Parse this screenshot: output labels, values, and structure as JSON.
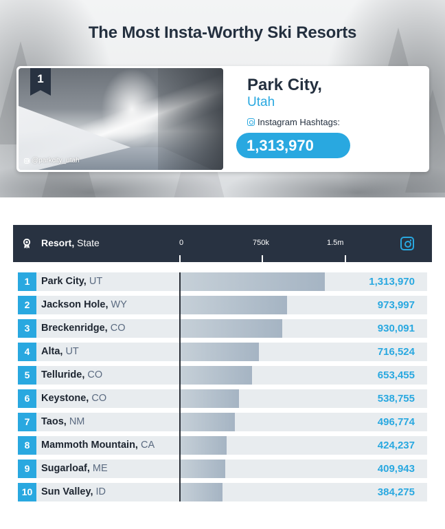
{
  "hero": {
    "title": "The Most Insta-Worthy Ski Resorts",
    "feature": {
      "rank": "1",
      "resort": "Park City,",
      "state": "Utah",
      "photo_credit": "@parkcity_utah",
      "hashtag_label": "Instagram Hashtags:",
      "hashtag_count": "1,313,970",
      "icons": {
        "credit": "instagram-icon",
        "label": "instagram-icon"
      }
    }
  },
  "colors": {
    "navy": "#283241",
    "accent_blue": "#29a8e0",
    "row_bg": "#e8ecef",
    "bar_start": "#c6d0d8",
    "bar_end": "#a5b4c3",
    "state_text": "#5a6a80"
  },
  "table": {
    "header": {
      "column_bold": "Resort,",
      "column_regular": " State",
      "icon_left": "award-ribbon-icon",
      "icon_right": "instagram-icon",
      "ticks": [
        "0",
        "750k",
        "1.5m"
      ]
    },
    "rows": [
      {
        "rank": "1",
        "name": "Park City,",
        "state": " UT",
        "value_label": "1,313,970"
      },
      {
        "rank": "2",
        "name": "Jackson Hole,",
        "state": " WY",
        "value_label": "973,997"
      },
      {
        "rank": "3",
        "name": "Breckenridge,",
        "state": " CO",
        "value_label": "930,091"
      },
      {
        "rank": "4",
        "name": "Alta,",
        "state": " UT",
        "value_label": "716,524"
      },
      {
        "rank": "5",
        "name": "Telluride,",
        "state": " CO",
        "value_label": "653,455"
      },
      {
        "rank": "6",
        "name": "Keystone,",
        "state": " CO",
        "value_label": "538,755"
      },
      {
        "rank": "7",
        "name": "Taos,",
        "state": " NM",
        "value_label": "496,774"
      },
      {
        "rank": "8",
        "name": "Mammoth Mountain,",
        "state": " CA",
        "value_label": "424,237"
      },
      {
        "rank": "9",
        "name": "Sugarloaf,",
        "state": " ME",
        "value_label": "409,943"
      },
      {
        "rank": "10",
        "name": "Sun Valley,",
        "state": " ID",
        "value_label": "384,275"
      }
    ]
  },
  "chart_data": {
    "type": "bar",
    "orientation": "horizontal",
    "title": "The Most Insta-Worthy Ski Resorts",
    "xlabel": "Instagram Hashtags",
    "ylabel": "Resort, State",
    "categories": [
      "Park City, UT",
      "Jackson Hole, WY",
      "Breckenridge, CO",
      "Alta, UT",
      "Telluride, CO",
      "Keystone, CO",
      "Taos, NM",
      "Mammoth Mountain, CA",
      "Sugarloaf, ME",
      "Sun Valley, ID"
    ],
    "values": [
      1313970,
      973997,
      930091,
      716524,
      653455,
      538755,
      496774,
      424237,
      409943,
      384275
    ],
    "x_ticks": [
      "0",
      "750k",
      "1.5m"
    ],
    "xlim": [
      0,
      2250000
    ],
    "grid": false,
    "legend": null
  }
}
